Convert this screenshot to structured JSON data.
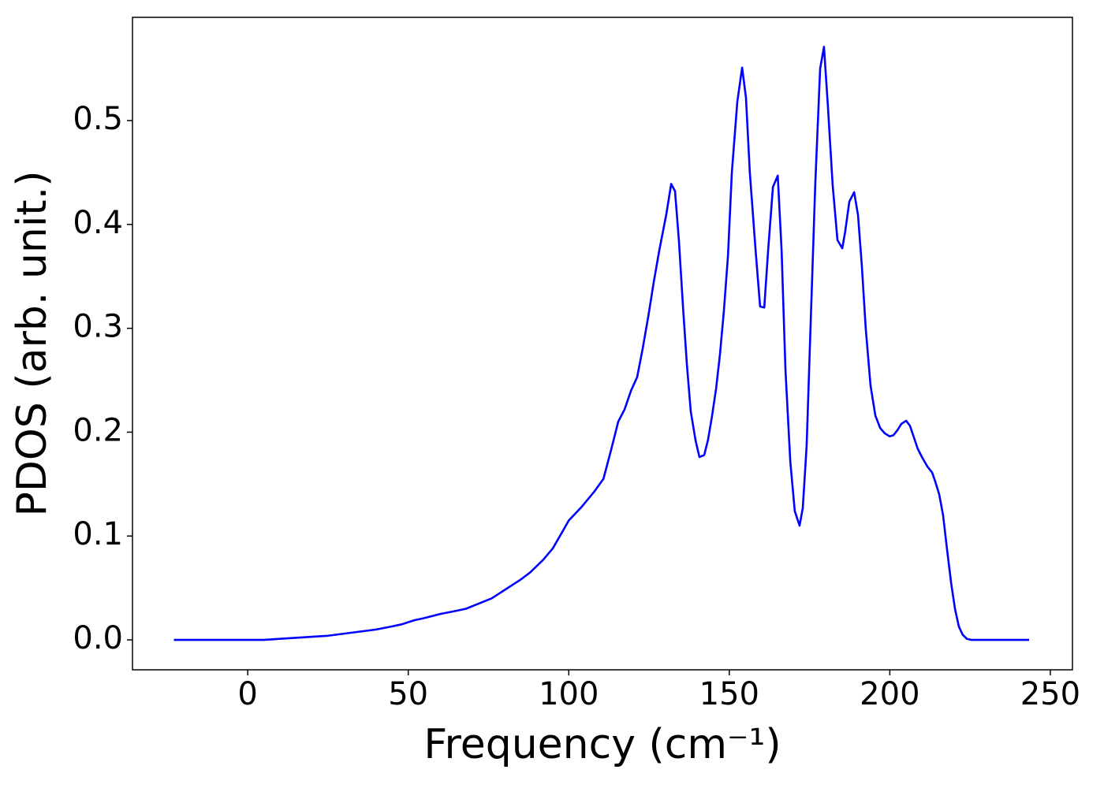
{
  "chart_data": {
    "type": "line",
    "xlabel": "Frequency (cm⁻¹)",
    "ylabel": "PDOS (arb. unit.)",
    "xlim": [
      -35.9,
      256.9
    ],
    "ylim": [
      -0.0288,
      0.5994
    ],
    "xticks": [
      0,
      50,
      100,
      150,
      200,
      250
    ],
    "yticks": [
      {
        "value": 0,
        "label": "0.0"
      },
      0.1,
      0.2,
      0.3,
      0.4,
      0.5
    ],
    "grid": false,
    "x": [
      -23,
      0,
      5,
      10,
      20,
      25,
      30,
      35,
      40,
      45,
      48,
      52,
      55,
      60,
      65,
      68,
      72,
      76,
      80,
      85,
      88,
      92,
      95,
      98,
      100,
      104,
      108,
      110.8,
      113.2,
      115.4,
      117.4,
      119.4,
      121.3,
      123,
      124.8,
      126.5,
      128.2,
      130.4,
      131.9,
      133.1,
      134.3,
      135.6,
      136.8,
      138,
      139.5,
      140.7,
      142.2,
      143.4,
      144.6,
      145.9,
      147.1,
      148.3,
      149.6,
      150.8,
      152.5,
      154,
      155.2,
      156.4,
      158.2,
      159.6,
      160.9,
      162.1,
      163.6,
      165.1,
      166.3,
      167.5,
      169,
      170.4,
      171.9,
      172.9,
      174.1,
      175.3,
      176.8,
      178.3,
      179.5,
      180.7,
      182.2,
      183.7,
      185.2,
      186.1,
      187.4,
      188.9,
      190.1,
      191.3,
      192.5,
      194,
      195.5,
      197,
      198.4,
      199.9,
      201.1,
      202.4,
      203.6,
      205.1,
      206.3,
      207.5,
      208.7,
      210.2,
      211.7,
      213.2,
      214.1,
      215.4,
      216.6,
      217.8,
      219.1,
      220.3,
      221.5,
      222.7,
      224,
      225.4,
      243.4
    ],
    "series": [
      {
        "name": "PDOS",
        "color": "#0000ff",
        "values": [
          0,
          0,
          0,
          0.001,
          0.003,
          0.004,
          0.006,
          0.008,
          0.01,
          0.013,
          0.015,
          0.019,
          0.021,
          0.025,
          0.028,
          0.03,
          0.035,
          0.04,
          0.048,
          0.058,
          0.065,
          0.077,
          0.088,
          0.104,
          0.115,
          0.128,
          0.143,
          0.155,
          0.183,
          0.21,
          0.222,
          0.24,
          0.253,
          0.28,
          0.312,
          0.345,
          0.375,
          0.41,
          0.439,
          0.432,
          0.385,
          0.32,
          0.265,
          0.22,
          0.192,
          0.176,
          0.178,
          0.193,
          0.215,
          0.242,
          0.275,
          0.316,
          0.37,
          0.45,
          0.518,
          0.551,
          0.522,
          0.45,
          0.375,
          0.321,
          0.32,
          0.375,
          0.436,
          0.447,
          0.375,
          0.26,
          0.172,
          0.124,
          0.11,
          0.127,
          0.187,
          0.3,
          0.44,
          0.55,
          0.571,
          0.515,
          0.438,
          0.385,
          0.377,
          0.393,
          0.422,
          0.431,
          0.409,
          0.36,
          0.3,
          0.245,
          0.216,
          0.204,
          0.199,
          0.196,
          0.197,
          0.202,
          0.208,
          0.211,
          0.206,
          0.195,
          0.184,
          0.175,
          0.167,
          0.161,
          0.153,
          0.14,
          0.12,
          0.088,
          0.055,
          0.03,
          0.013,
          0.005,
          0.001,
          0,
          0
        ]
      }
    ]
  }
}
